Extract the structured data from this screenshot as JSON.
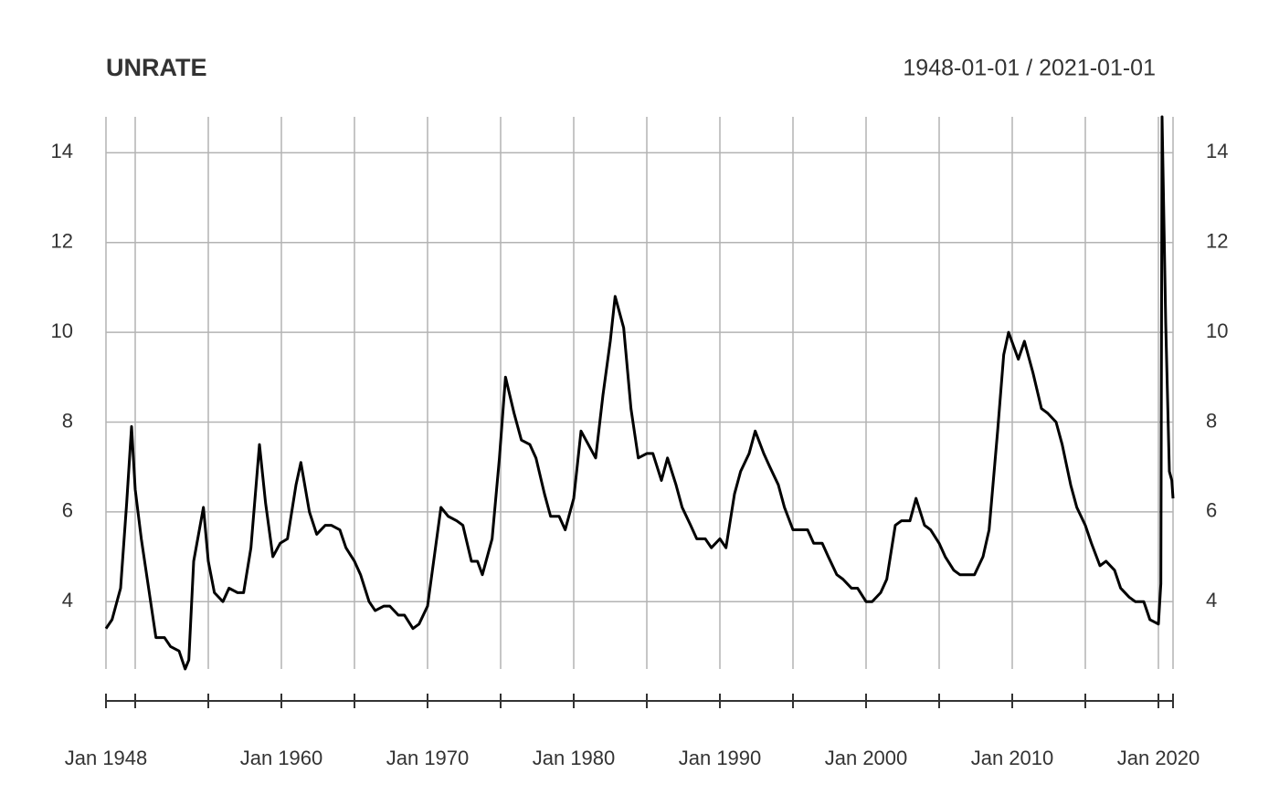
{
  "chart_data": {
    "type": "line",
    "title": "UNRATE",
    "date_range": "1948-01-01 / 2021-01-01",
    "x": [
      "1948-01",
      "1948-06",
      "1949-01",
      "1949-06",
      "1949-10",
      "1950-01",
      "1950-06",
      "1950-12",
      "1951-06",
      "1952-01",
      "1952-06",
      "1953-01",
      "1953-06",
      "1953-09",
      "1954-01",
      "1954-09",
      "1955-01",
      "1955-06",
      "1956-01",
      "1956-06",
      "1957-01",
      "1957-06",
      "1957-12",
      "1958-07",
      "1958-12",
      "1959-06",
      "1959-12",
      "1960-06",
      "1961-01",
      "1961-05",
      "1961-12",
      "1962-06",
      "1963-01",
      "1963-06",
      "1964-01",
      "1964-06",
      "1965-01",
      "1965-06",
      "1966-01",
      "1966-06",
      "1967-01",
      "1967-06",
      "1968-01",
      "1968-06",
      "1969-01",
      "1969-06",
      "1970-01",
      "1970-06",
      "1970-12",
      "1971-06",
      "1972-01",
      "1972-06",
      "1973-01",
      "1973-06",
      "1973-10",
      "1974-06",
      "1974-12",
      "1975-05",
      "1975-12",
      "1976-06",
      "1977-01",
      "1977-06",
      "1978-01",
      "1978-06",
      "1979-01",
      "1979-06",
      "1980-01",
      "1980-07",
      "1981-01",
      "1981-07",
      "1982-01",
      "1982-07",
      "1982-11",
      "1983-06",
      "1983-12",
      "1984-06",
      "1985-01",
      "1985-06",
      "1986-01",
      "1986-06",
      "1987-01",
      "1987-06",
      "1988-01",
      "1988-06",
      "1989-01",
      "1989-06",
      "1990-01",
      "1990-06",
      "1991-01",
      "1991-06",
      "1992-01",
      "1992-06",
      "1993-01",
      "1993-06",
      "1994-01",
      "1994-06",
      "1995-01",
      "1995-06",
      "1996-01",
      "1996-06",
      "1997-01",
      "1997-06",
      "1998-01",
      "1998-06",
      "1999-01",
      "1999-06",
      "2000-01",
      "2000-06",
      "2001-01",
      "2001-06",
      "2002-01",
      "2002-06",
      "2003-01",
      "2003-06",
      "2004-01",
      "2004-06",
      "2005-01",
      "2005-06",
      "2006-01",
      "2006-06",
      "2007-01",
      "2007-06",
      "2008-01",
      "2008-06",
      "2009-01",
      "2009-06",
      "2009-10",
      "2010-06",
      "2010-11",
      "2011-06",
      "2012-01",
      "2012-06",
      "2013-01",
      "2013-06",
      "2014-01",
      "2014-06",
      "2015-01",
      "2015-06",
      "2016-01",
      "2016-06",
      "2017-01",
      "2017-06",
      "2018-01",
      "2018-06",
      "2019-01",
      "2019-06",
      "2020-01",
      "2020-03",
      "2020-04",
      "2020-07",
      "2020-10",
      "2020-12",
      "2021-01"
    ],
    "values": [
      3.4,
      3.6,
      4.3,
      6.2,
      7.9,
      6.5,
      5.4,
      4.3,
      3.2,
      3.2,
      3.0,
      2.9,
      2.5,
      2.7,
      4.9,
      6.1,
      4.9,
      4.2,
      4.0,
      4.3,
      4.2,
      4.2,
      5.2,
      7.5,
      6.2,
      5.0,
      5.3,
      5.4,
      6.6,
      7.1,
      6.0,
      5.5,
      5.7,
      5.7,
      5.6,
      5.2,
      4.9,
      4.6,
      4.0,
      3.8,
      3.9,
      3.9,
      3.7,
      3.7,
      3.4,
      3.5,
      3.9,
      4.9,
      6.1,
      5.9,
      5.8,
      5.7,
      4.9,
      4.9,
      4.6,
      5.4,
      7.2,
      9.0,
      8.2,
      7.6,
      7.5,
      7.2,
      6.4,
      5.9,
      5.9,
      5.6,
      6.3,
      7.8,
      7.5,
      7.2,
      8.6,
      9.8,
      10.8,
      10.1,
      8.3,
      7.2,
      7.3,
      7.3,
      6.7,
      7.2,
      6.6,
      6.1,
      5.7,
      5.4,
      5.4,
      5.2,
      5.4,
      5.2,
      6.4,
      6.9,
      7.3,
      7.8,
      7.3,
      7.0,
      6.6,
      6.1,
      5.6,
      5.6,
      5.6,
      5.3,
      5.3,
      5.0,
      4.6,
      4.5,
      4.3,
      4.3,
      4.0,
      4.0,
      4.2,
      4.5,
      5.7,
      5.8,
      5.8,
      6.3,
      5.7,
      5.6,
      5.3,
      5.0,
      4.7,
      4.6,
      4.6,
      4.6,
      5.0,
      5.6,
      7.8,
      9.5,
      10.0,
      9.4,
      9.8,
      9.1,
      8.3,
      8.2,
      8.0,
      7.5,
      6.6,
      6.1,
      5.7,
      5.3,
      4.8,
      4.9,
      4.7,
      4.3,
      4.1,
      4.0,
      4.0,
      3.6,
      3.5,
      4.4,
      14.8,
      10.2,
      6.9,
      6.7,
      6.3
    ],
    "color": "#000000",
    "xlim": [
      "1948-01",
      "2021-01"
    ],
    "xticks": [
      {
        "value": "1948-01",
        "label": "Jan 1948"
      },
      {
        "value": "1960-01",
        "label": "Jan 1960"
      },
      {
        "value": "1970-01",
        "label": "Jan 1970"
      },
      {
        "value": "1980-01",
        "label": "Jan 1980"
      },
      {
        "value": "1990-01",
        "label": "Jan 1990"
      },
      {
        "value": "2000-01",
        "label": "Jan 2000"
      },
      {
        "value": "2010-01",
        "label": "Jan 2010"
      },
      {
        "value": "2020-01",
        "label": "Jan 2020"
      }
    ],
    "xticks_minor": [
      "1950-01",
      "1955-01",
      "1965-01",
      "1975-01",
      "1985-01",
      "1995-01",
      "2005-01",
      "2015-01",
      "2021-01"
    ],
    "ylim": [
      2.5,
      14.8
    ],
    "yticks": [
      4,
      6,
      8,
      10,
      12,
      14
    ],
    "grid": true
  }
}
